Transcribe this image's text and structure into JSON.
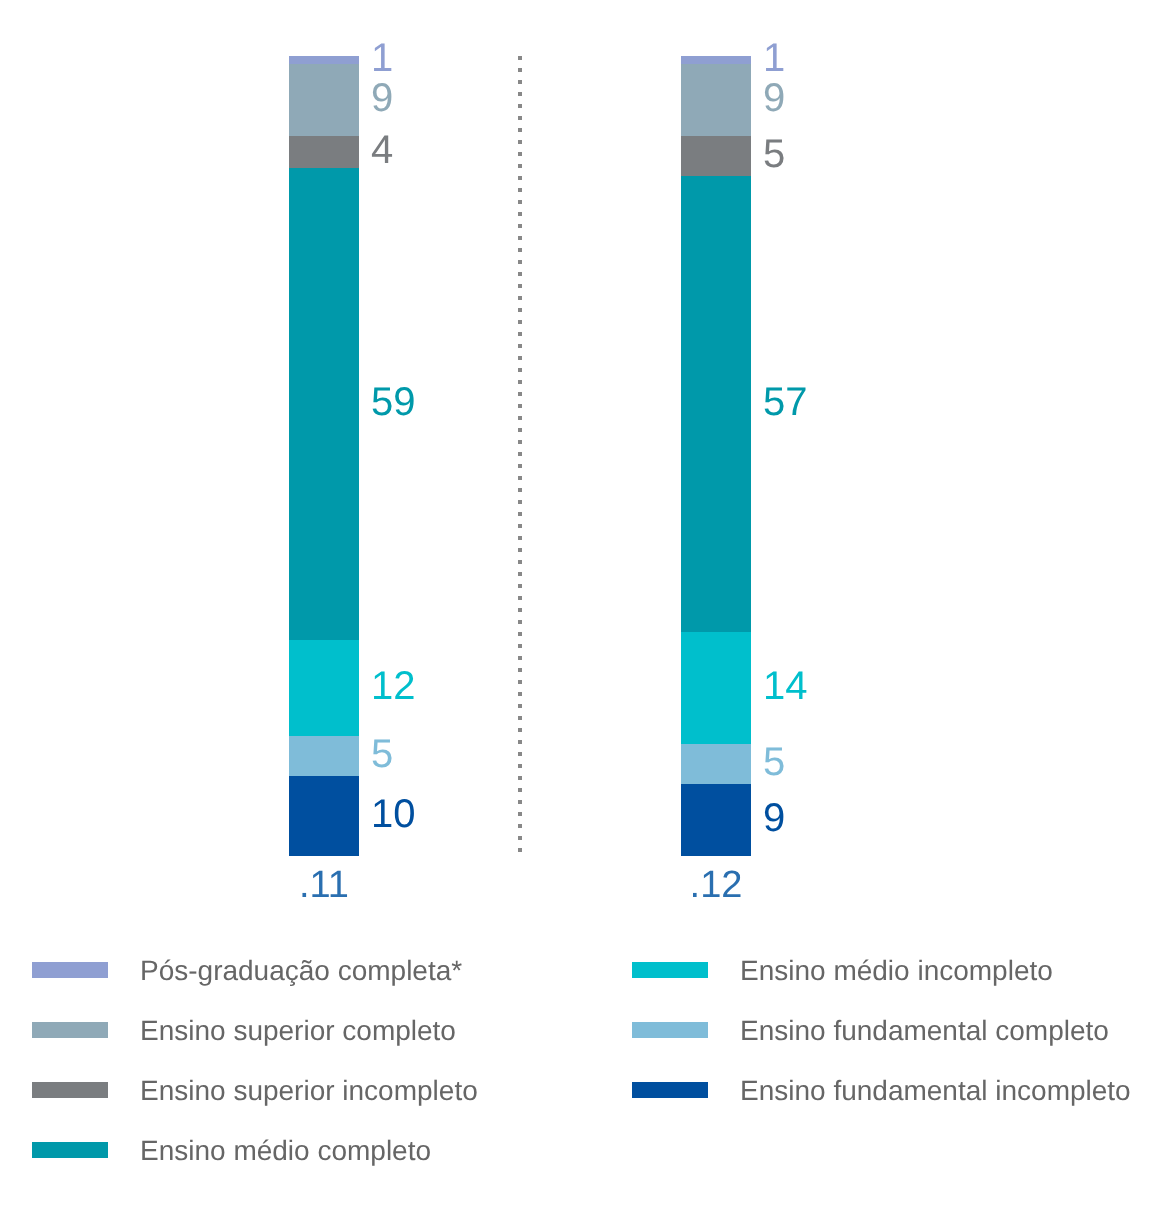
{
  "chart_data": {
    "type": "bar",
    "stacked": true,
    "categories": [
      ".11",
      ".12"
    ],
    "series": [
      {
        "name": "Ensino fundamental incompleto",
        "color": "#004f9f",
        "values": [
          10,
          9
        ]
      },
      {
        "name": "Ensino fundamental completo",
        "color": "#7fbcd9",
        "values": [
          5,
          5
        ]
      },
      {
        "name": "Ensino médio incompleto",
        "color": "#00bfcc",
        "values": [
          12,
          14
        ]
      },
      {
        "name": "Ensino médio completo",
        "color": "#0099aa",
        "values": [
          59,
          57
        ]
      },
      {
        "name": "Ensino superior incompleto",
        "color": "#7a7d80",
        "values": [
          4,
          5
        ]
      },
      {
        "name": "Ensino superior completo",
        "color": "#8fa9b7",
        "values": [
          9,
          9
        ]
      },
      {
        "name": "Pós-graduação completa*",
        "color": "#8f9fd2",
        "values": [
          1,
          1
        ]
      }
    ],
    "data_labels": true,
    "legend": "bottom",
    "grid": "x"
  }
}
